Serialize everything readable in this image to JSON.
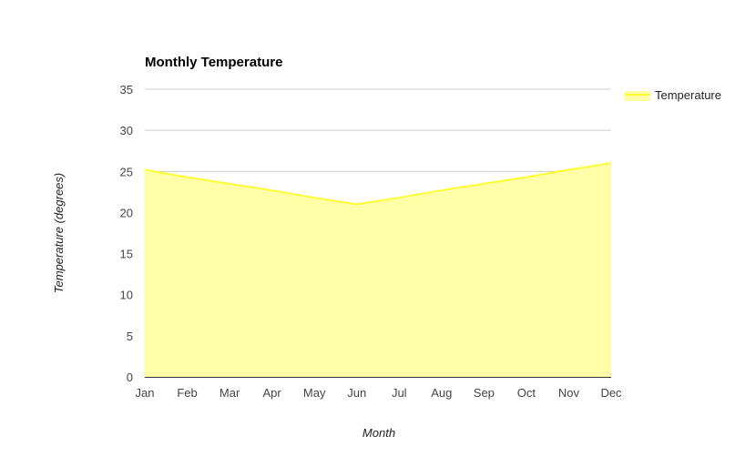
{
  "chart_data": {
    "type": "area",
    "title": "Monthly Temperature",
    "xlabel": "Month",
    "ylabel": "Temperature (degrees)",
    "categories": [
      "Jan",
      "Feb",
      "Mar",
      "Apr",
      "May",
      "Jun",
      "Jul",
      "Aug",
      "Sep",
      "Oct",
      "Nov",
      "Dec"
    ],
    "series": [
      {
        "name": "Temperature",
        "values": [
          25.2,
          24.3,
          23.5,
          22.7,
          21.8,
          21.0,
          21.8,
          22.7,
          23.5,
          24.3,
          25.2,
          26.0
        ],
        "color": "#ffff33",
        "fill_color": "#ffffa8"
      }
    ],
    "ylim": [
      0,
      35
    ],
    "yticks": [
      0,
      5,
      10,
      15,
      20,
      25,
      30,
      35
    ],
    "grid": true,
    "legend_position": "right"
  }
}
